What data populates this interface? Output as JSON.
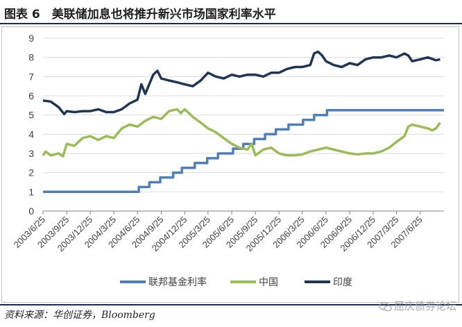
{
  "title": "图表 6　美联储加息也将推升新兴市场国家利率水平",
  "source": "资料来源：华创证券，Bloomberg",
  "watermark": "屈庆债券论坛",
  "colors": {
    "fed": "#4f7fb6",
    "china": "#9bbb59",
    "india": "#1f3552",
    "grid": "#d9d9d9",
    "axis": "#808080"
  },
  "chart_data": {
    "type": "line",
    "title": "",
    "xlabel": "",
    "ylabel": "",
    "ylim": [
      0,
      9
    ],
    "yticks": [
      0,
      1,
      2,
      3,
      4,
      5,
      6,
      7,
      8,
      9
    ],
    "x_tick_labels": [
      "2003/6/25",
      "2003/9/25",
      "2003/12/25",
      "2004/3/25",
      "2004/6/25",
      "2004/9/25",
      "2004/12/25",
      "2005/3/25",
      "2005/6/25",
      "2005/9/25",
      "2005/12/25",
      "2006/3/25",
      "2006/6/25",
      "2006/9/25",
      "2006/12/25",
      "2007/3/25",
      "2007/6/25"
    ],
    "x_range": [
      "2003/6/25",
      "2007/9/25"
    ],
    "grid": true,
    "legend_position": "bottom",
    "series": [
      {
        "name": "联邦基金利率",
        "color": "#4f7fb6",
        "step": true,
        "points": [
          [
            "2003/6/25",
            1.0
          ],
          [
            "2004/6/30",
            1.25
          ],
          [
            "2004/8/10",
            1.5
          ],
          [
            "2004/9/21",
            1.75
          ],
          [
            "2004/11/10",
            2.0
          ],
          [
            "2004/12/14",
            2.25
          ],
          [
            "2005/2/2",
            2.5
          ],
          [
            "2005/3/22",
            2.75
          ],
          [
            "2005/5/3",
            3.0
          ],
          [
            "2005/6/30",
            3.25
          ],
          [
            "2005/8/9",
            3.5
          ],
          [
            "2005/9/20",
            3.75
          ],
          [
            "2005/11/1",
            4.0
          ],
          [
            "2005/12/13",
            4.25
          ],
          [
            "2006/1/31",
            4.5
          ],
          [
            "2006/3/28",
            4.75
          ],
          [
            "2006/5/10",
            5.0
          ],
          [
            "2006/6/29",
            5.25
          ],
          [
            "2007/9/25",
            5.25
          ]
        ]
      },
      {
        "name": "中国",
        "color": "#9bbb59",
        "step": false,
        "points": [
          [
            "2003/6/25",
            2.9
          ],
          [
            "2003/7/5",
            3.1
          ],
          [
            "2003/7/25",
            2.9
          ],
          [
            "2003/8/25",
            3.0
          ],
          [
            "2003/9/10",
            2.85
          ],
          [
            "2003/9/25",
            3.5
          ],
          [
            "2003/10/25",
            3.4
          ],
          [
            "2003/11/25",
            3.8
          ],
          [
            "2003/12/25",
            3.9
          ],
          [
            "2004/1/25",
            3.7
          ],
          [
            "2004/2/25",
            3.9
          ],
          [
            "2004/3/25",
            3.8
          ],
          [
            "2004/4/25",
            4.3
          ],
          [
            "2004/5/25",
            4.5
          ],
          [
            "2004/6/25",
            4.4
          ],
          [
            "2004/7/25",
            4.7
          ],
          [
            "2004/8/25",
            4.9
          ],
          [
            "2004/9/25",
            4.8
          ],
          [
            "2004/10/25",
            5.2
          ],
          [
            "2004/11/25",
            5.3
          ],
          [
            "2004/12/10",
            5.1
          ],
          [
            "2004/12/25",
            5.3
          ],
          [
            "2005/1/25",
            4.9
          ],
          [
            "2005/2/25",
            4.6
          ],
          [
            "2005/3/25",
            4.3
          ],
          [
            "2005/4/25",
            4.1
          ],
          [
            "2005/5/25",
            3.8
          ],
          [
            "2005/6/25",
            3.5
          ],
          [
            "2005/7/25",
            3.3
          ],
          [
            "2005/8/25",
            3.2
          ],
          [
            "2005/9/10",
            3.5
          ],
          [
            "2005/9/25",
            2.9
          ],
          [
            "2005/10/25",
            3.2
          ],
          [
            "2005/11/25",
            3.3
          ],
          [
            "2005/12/25",
            3.0
          ],
          [
            "2006/1/25",
            2.9
          ],
          [
            "2006/2/25",
            2.9
          ],
          [
            "2006/3/25",
            2.95
          ],
          [
            "2006/4/25",
            3.1
          ],
          [
            "2006/5/25",
            3.2
          ],
          [
            "2006/6/25",
            3.3
          ],
          [
            "2006/7/25",
            3.2
          ],
          [
            "2006/8/25",
            3.1
          ],
          [
            "2006/9/25",
            3.0
          ],
          [
            "2006/10/25",
            2.95
          ],
          [
            "2006/11/25",
            3.0
          ],
          [
            "2006/12/25",
            3.0
          ],
          [
            "2007/1/25",
            3.1
          ],
          [
            "2007/2/25",
            3.3
          ],
          [
            "2007/3/25",
            3.6
          ],
          [
            "2007/4/25",
            3.9
          ],
          [
            "2007/5/10",
            4.4
          ],
          [
            "2007/5/25",
            4.5
          ],
          [
            "2007/6/25",
            4.4
          ],
          [
            "2007/7/25",
            4.3
          ],
          [
            "2007/8/10",
            4.2
          ],
          [
            "2007/8/25",
            4.3
          ],
          [
            "2007/9/10",
            4.6
          ]
        ]
      },
      {
        "name": "印度",
        "color": "#1f3552",
        "step": false,
        "points": [
          [
            "2003/6/25",
            5.75
          ],
          [
            "2003/7/25",
            5.7
          ],
          [
            "2003/8/25",
            5.4
          ],
          [
            "2003/9/15",
            5.05
          ],
          [
            "2003/9/25",
            5.2
          ],
          [
            "2003/10/25",
            5.15
          ],
          [
            "2003/11/25",
            5.2
          ],
          [
            "2003/12/25",
            5.2
          ],
          [
            "2004/1/25",
            5.3
          ],
          [
            "2004/2/25",
            5.15
          ],
          [
            "2004/3/25",
            5.15
          ],
          [
            "2004/4/25",
            5.3
          ],
          [
            "2004/5/25",
            5.6
          ],
          [
            "2004/6/25",
            5.8
          ],
          [
            "2004/7/10",
            6.6
          ],
          [
            "2004/7/25",
            6.1
          ],
          [
            "2004/8/25",
            7.1
          ],
          [
            "2004/9/10",
            7.3
          ],
          [
            "2004/9/25",
            6.9
          ],
          [
            "2004/10/25",
            6.8
          ],
          [
            "2004/11/25",
            6.7
          ],
          [
            "2004/12/25",
            6.6
          ],
          [
            "2005/1/25",
            6.5
          ],
          [
            "2005/2/25",
            6.8
          ],
          [
            "2005/3/25",
            7.2
          ],
          [
            "2005/4/25",
            7.0
          ],
          [
            "2005/5/25",
            6.9
          ],
          [
            "2005/6/25",
            7.1
          ],
          [
            "2005/7/25",
            7.0
          ],
          [
            "2005/8/25",
            7.1
          ],
          [
            "2005/9/25",
            7.1
          ],
          [
            "2005/10/25",
            7.0
          ],
          [
            "2005/11/25",
            7.2
          ],
          [
            "2005/12/25",
            7.2
          ],
          [
            "2006/1/25",
            7.4
          ],
          [
            "2006/2/25",
            7.5
          ],
          [
            "2006/3/25",
            7.5
          ],
          [
            "2006/4/25",
            7.6
          ],
          [
            "2006/5/10",
            8.2
          ],
          [
            "2006/5/25",
            8.3
          ],
          [
            "2006/6/10",
            8.1
          ],
          [
            "2006/6/25",
            7.8
          ],
          [
            "2006/7/25",
            7.6
          ],
          [
            "2006/8/25",
            7.5
          ],
          [
            "2006/9/25",
            7.7
          ],
          [
            "2006/10/25",
            7.6
          ],
          [
            "2006/11/25",
            7.9
          ],
          [
            "2006/12/25",
            8.0
          ],
          [
            "2007/1/25",
            8.0
          ],
          [
            "2007/2/25",
            8.1
          ],
          [
            "2007/3/25",
            8.0
          ],
          [
            "2007/4/25",
            8.2
          ],
          [
            "2007/5/10",
            8.1
          ],
          [
            "2007/5/25",
            7.8
          ],
          [
            "2007/6/25",
            7.9
          ],
          [
            "2007/7/25",
            8.0
          ],
          [
            "2007/8/25",
            7.85
          ],
          [
            "2007/9/10",
            7.9
          ]
        ]
      }
    ]
  }
}
